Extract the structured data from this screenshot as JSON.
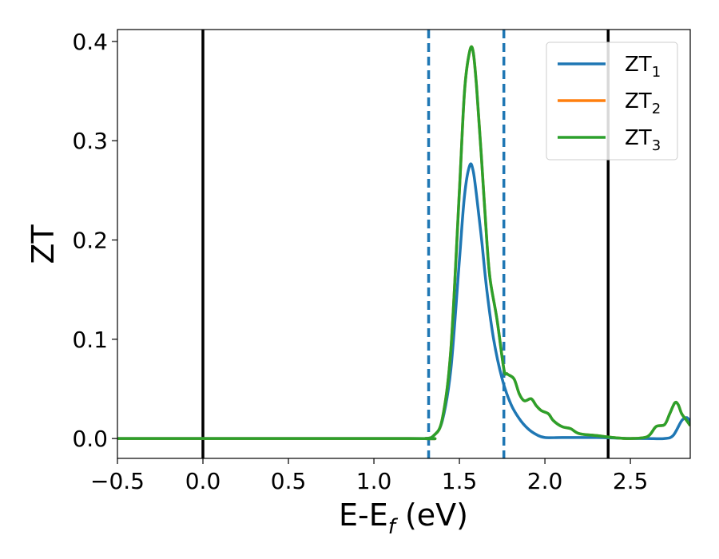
{
  "chart_data": {
    "type": "line",
    "xlabel_main": "E-E",
    "xlabel_sub": "f",
    "xlabel_tail": " (eV)",
    "ylabel": "ZT",
    "xlim": [
      -0.5,
      2.85
    ],
    "ylim": [
      -0.02,
      0.412
    ],
    "xticks": [
      -0.5,
      0.0,
      0.5,
      1.0,
      1.5,
      2.0,
      2.5
    ],
    "xtick_labels": [
      "−0.5",
      "0.0",
      "0.5",
      "1.0",
      "1.5",
      "2.0",
      "2.5"
    ],
    "yticks": [
      0.0,
      0.1,
      0.2,
      0.3,
      0.4
    ],
    "ytick_labels": [
      "0.0",
      "0.1",
      "0.2",
      "0.3",
      "0.4"
    ],
    "grid": false,
    "legend_position": "top-right",
    "vlines_solid": [
      0.0,
      2.37
    ],
    "vlines_dashed": [
      1.32,
      1.76
    ],
    "series": [
      {
        "label_main": "ZT",
        "label_sub": "1",
        "color": "#1f77b4",
        "x": [
          -0.5,
          1.2,
          1.3,
          1.35,
          1.4,
          1.45,
          1.5,
          1.53,
          1.56,
          1.58,
          1.6,
          1.63,
          1.66,
          1.7,
          1.75,
          1.8,
          1.85,
          1.9,
          1.95,
          2.0,
          2.1,
          2.3,
          2.5,
          2.6,
          2.7,
          2.75,
          2.8,
          2.83,
          2.85
        ],
        "y": [
          0.0,
          0.0,
          0.0,
          0.003,
          0.018,
          0.07,
          0.18,
          0.245,
          0.275,
          0.27,
          0.245,
          0.2,
          0.15,
          0.1,
          0.06,
          0.035,
          0.02,
          0.01,
          0.004,
          0.001,
          0.001,
          0.001,
          0.0,
          0.0,
          0.0,
          0.003,
          0.018,
          0.021,
          0.017
        ]
      },
      {
        "label_main": "ZT",
        "label_sub": "2",
        "color": "#ff7f0e",
        "x": [
          -0.5,
          1.2,
          1.3,
          1.35,
          1.4,
          1.45,
          1.5,
          1.53,
          1.56,
          1.58,
          1.6,
          1.63,
          1.66,
          1.68,
          1.72,
          1.76,
          1.78,
          1.82,
          1.85,
          1.88,
          1.92,
          1.95,
          1.98,
          2.02,
          2.05,
          2.1,
          2.15,
          2.2,
          2.3,
          2.4,
          2.5,
          2.6,
          2.65,
          2.7,
          2.73,
          2.76,
          2.78,
          2.8,
          2.83,
          2.85
        ],
        "y": [
          0.0,
          0.0,
          0.0,
          0.003,
          0.02,
          0.09,
          0.25,
          0.35,
          0.39,
          0.39,
          0.355,
          0.28,
          0.2,
          0.16,
          0.12,
          0.07,
          0.065,
          0.06,
          0.045,
          0.038,
          0.04,
          0.033,
          0.028,
          0.025,
          0.018,
          0.012,
          0.01,
          0.005,
          0.003,
          0.001,
          0.0,
          0.002,
          0.012,
          0.014,
          0.025,
          0.036,
          0.034,
          0.025,
          0.018,
          0.013
        ]
      },
      {
        "label_main": "ZT",
        "label_sub": "3",
        "color": "#2ca02c",
        "x": [
          -0.5,
          1.2,
          1.3,
          1.35,
          1.4,
          1.45,
          1.5,
          1.53,
          1.56,
          1.58,
          1.6,
          1.63,
          1.66,
          1.68,
          1.72,
          1.76,
          1.78,
          1.82,
          1.85,
          1.88,
          1.92,
          1.95,
          1.98,
          2.02,
          2.05,
          2.1,
          2.15,
          2.2,
          2.3,
          2.4,
          2.5,
          2.6,
          2.65,
          2.7,
          2.73,
          2.76,
          2.78,
          2.8,
          2.83,
          2.85
        ],
        "y": [
          0.0,
          0.0,
          0.0,
          0.003,
          0.02,
          0.09,
          0.25,
          0.35,
          0.39,
          0.39,
          0.355,
          0.28,
          0.2,
          0.16,
          0.12,
          0.07,
          0.065,
          0.06,
          0.045,
          0.038,
          0.04,
          0.033,
          0.028,
          0.025,
          0.018,
          0.012,
          0.01,
          0.005,
          0.003,
          0.001,
          0.0,
          0.002,
          0.012,
          0.014,
          0.025,
          0.036,
          0.034,
          0.025,
          0.018,
          0.013
        ]
      }
    ]
  }
}
